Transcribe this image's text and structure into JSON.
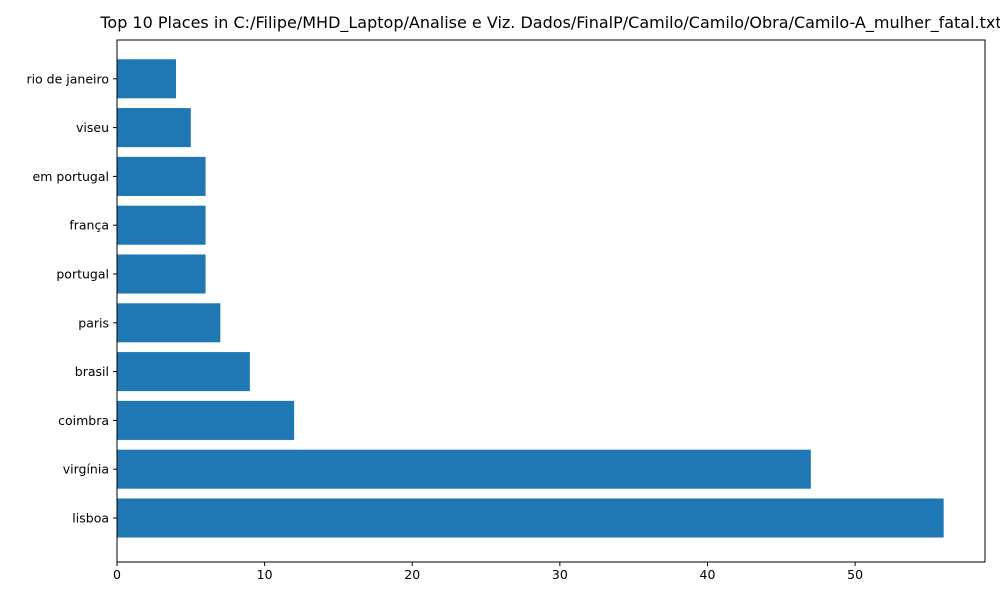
{
  "chart_data": {
    "type": "bar",
    "orientation": "horizontal",
    "title": "Top 10 Places in C:/Filipe/MHD_Laptop/Analise e Viz. Dados/FinalP/Camilo/Camilo/Obra/Camilo-A_mulher_fatal.txt",
    "xlabel": "",
    "ylabel": "",
    "categories": [
      "lisboa",
      "virgínia",
      "coimbra",
      "brasil",
      "paris",
      "portugal",
      "frança",
      "em portugal",
      "viseu",
      "rio de janeiro"
    ],
    "values": [
      56,
      47,
      12,
      9,
      7,
      6,
      6,
      6,
      5,
      4
    ],
    "xlim": [
      0,
      58.8
    ],
    "xticks": [
      0,
      10,
      20,
      30,
      40,
      50
    ],
    "grid": false,
    "legend": "none",
    "bar_color": "#1f77b4"
  }
}
